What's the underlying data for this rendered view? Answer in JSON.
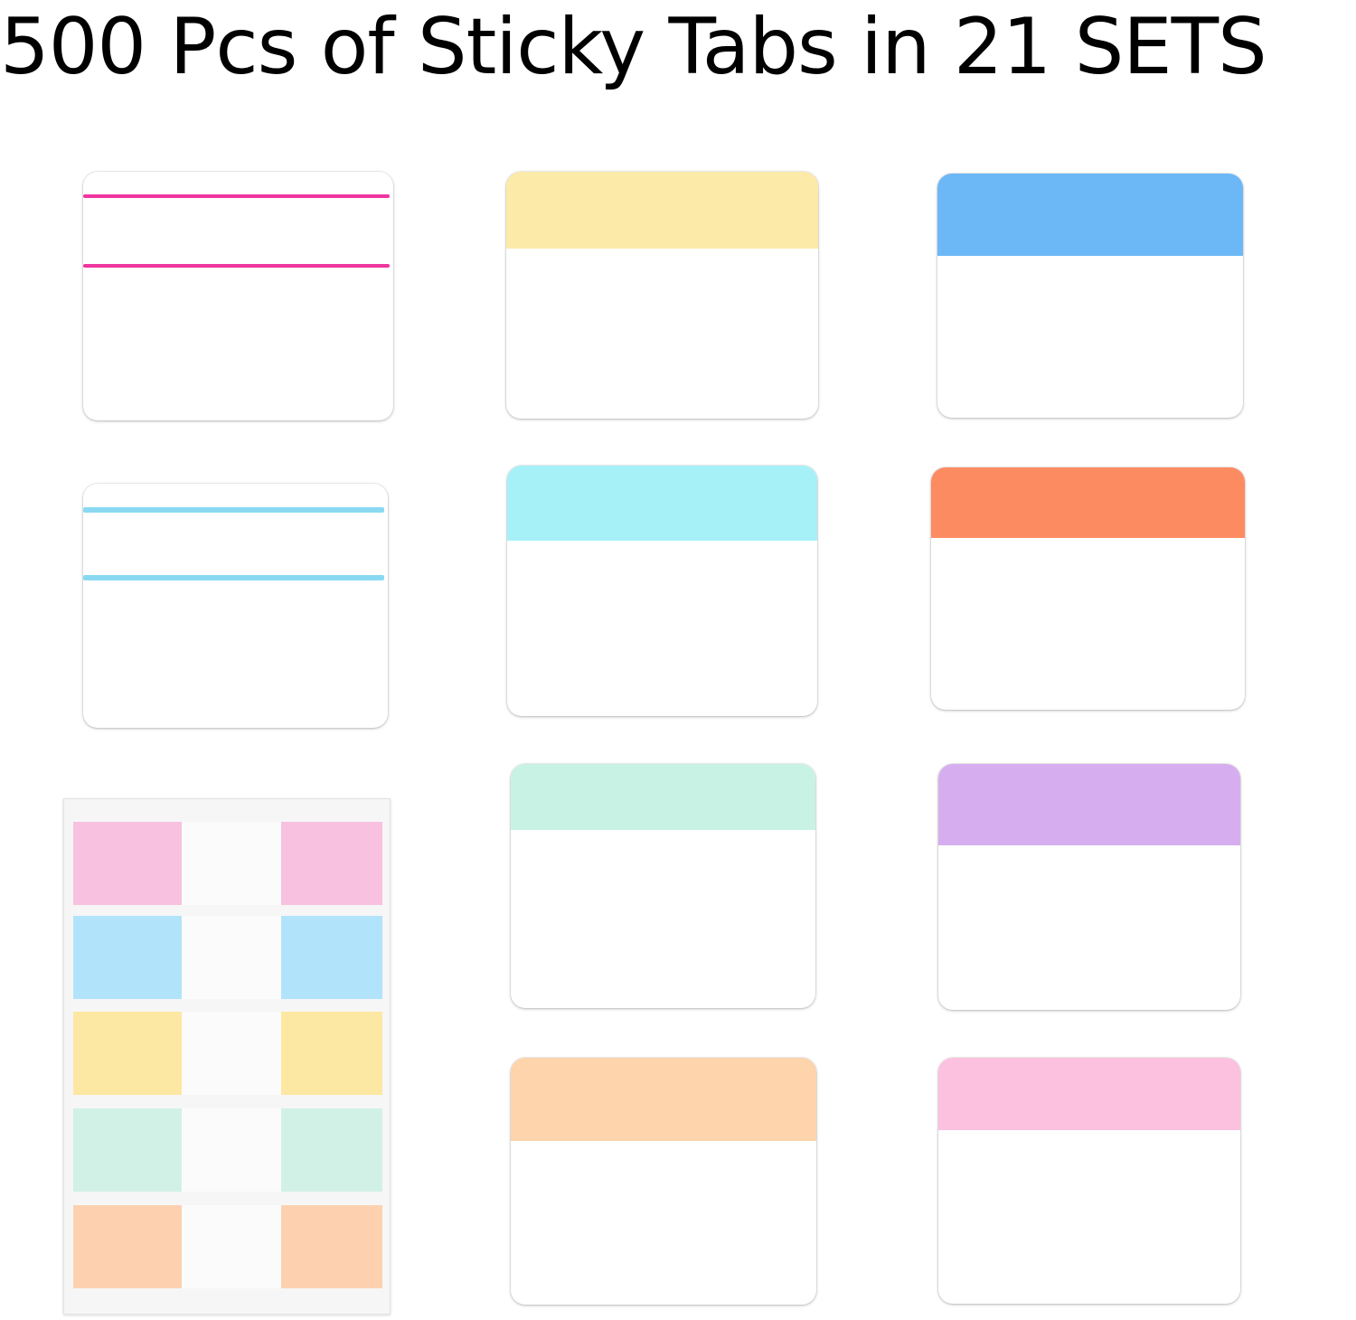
{
  "title": "500 Pcs of Sticky Tabs in 21 SETS",
  "lined_tabs": [
    {
      "line_color": "#f0359f"
    },
    {
      "line_color": "#8ad9f3"
    }
  ],
  "header_tabs": [
    {
      "color": "#fbeaa8"
    },
    {
      "color": "#6cb8f6"
    },
    {
      "color": "#a6f1f8"
    },
    {
      "color": "#fd8b62"
    },
    {
      "color": "#c8f3e4"
    },
    {
      "color": "#d6aef0"
    },
    {
      "color": "#fdd4ab"
    },
    {
      "color": "#fbc1df"
    }
  ],
  "dispenser_strips": [
    {
      "color": "#f8c1e0"
    },
    {
      "color": "#b1e4fb"
    },
    {
      "color": "#fce8a2"
    },
    {
      "color": "#d2f1e6"
    },
    {
      "color": "#fdd1b0"
    }
  ]
}
